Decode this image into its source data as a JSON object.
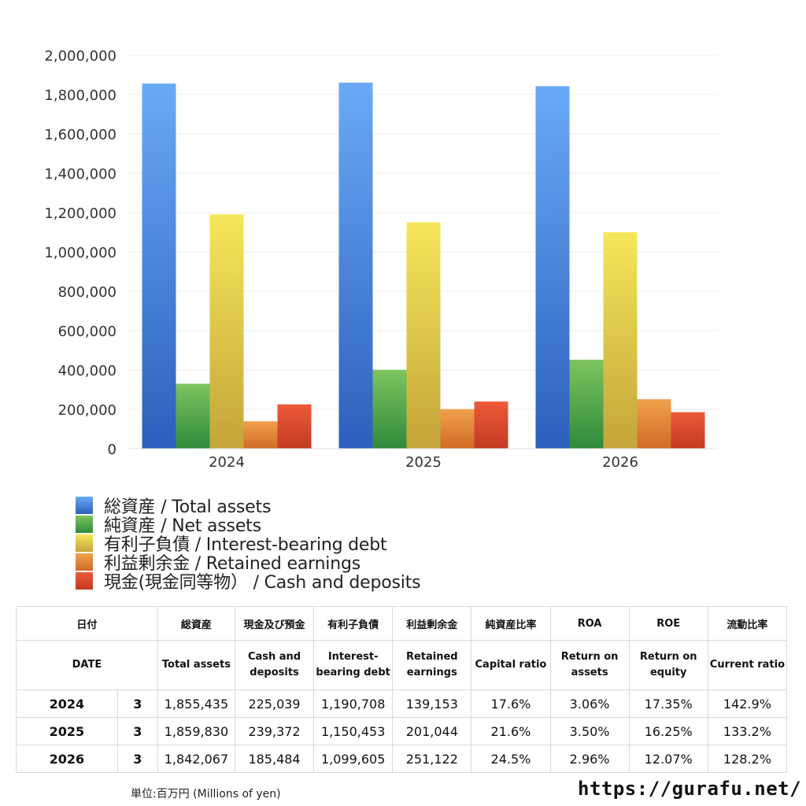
{
  "chart_data": {
    "type": "bar",
    "categories": [
      "2024",
      "2025",
      "2026"
    ],
    "series": [
      {
        "name": "総資産 / Total assets",
        "values": [
          1855435,
          1859830,
          1842067
        ],
        "color_top": "#6aaaf5",
        "color_bottom": "#2c5fbd"
      },
      {
        "name": "純資産 / Net assets",
        "values": [
          330000,
          401000,
          452000
        ],
        "color_top": "#7ec460",
        "color_bottom": "#2e8a3a"
      },
      {
        "name": "有利子負債 / Interest-bearing debt",
        "values": [
          1190708,
          1150453,
          1099605
        ],
        "color_top": "#f6e65a",
        "color_bottom": "#c4a53a"
      },
      {
        "name": "利益剰余金 / Retained earnings",
        "values": [
          139153,
          201044,
          251122
        ],
        "color_top": "#f0a24e",
        "color_bottom": "#d06a26"
      },
      {
        "name": "現金(現金同等物)  /  Cash and deposits",
        "values": [
          225039,
          239372,
          185484
        ],
        "color_top": "#ee5a3a",
        "color_bottom": "#c23a22"
      }
    ],
    "ylim": [
      0,
      2000000
    ],
    "yticks": [
      0,
      200000,
      400000,
      600000,
      800000,
      1000000,
      1200000,
      1400000,
      1600000,
      1800000,
      2000000
    ],
    "ytick_labels": [
      "0",
      "200,000",
      "400,000",
      "600,000",
      "800,000",
      "1,000,000",
      "1,200,000",
      "1,400,000",
      "1,600,000",
      "1,800,000",
      "2,000,000"
    ],
    "grid": true,
    "legend_position": "bottom-left"
  },
  "legend": [
    {
      "label": "総資産 / Total assets",
      "color": "#4a88e0"
    },
    {
      "label": "純資産 / Net assets",
      "color": "#4fa84a"
    },
    {
      "label": "有利子負債 / Interest-bearing debt",
      "color": "#ead048"
    },
    {
      "label": "利益剰余金 / Retained earnings",
      "color": "#e58a3c"
    },
    {
      "label": "現金(現金同等物）  /  Cash and deposits",
      "color": "#dd4a30"
    }
  ],
  "table": {
    "header_jp": [
      "日付",
      "総資産",
      "現金及び預金",
      "有利子負債",
      "利益剰余金",
      "純資産比率",
      "ROA",
      "ROE",
      "流動比率"
    ],
    "header_en": [
      "DATE",
      "Total assets",
      "Cash and deposits",
      "Interest-bearing debt",
      "Retained earnings",
      "Capital ratio",
      "Return on assets",
      "Return on equity",
      "Current ratio"
    ],
    "rows": [
      {
        "year": "2024",
        "month": "3",
        "total_assets": "1,855,435",
        "cash": "225,039",
        "debt": "1,190,708",
        "retained": "139,153",
        "capital_ratio": "17.6%",
        "roa": "3.06%",
        "roe": "17.35%",
        "current_ratio": "142.9%"
      },
      {
        "year": "2025",
        "month": "3",
        "total_assets": "1,859,830",
        "cash": "239,372",
        "debt": "1,150,453",
        "retained": "201,044",
        "capital_ratio": "21.6%",
        "roa": "3.50%",
        "roe": "16.25%",
        "current_ratio": "133.2%"
      },
      {
        "year": "2026",
        "month": "3",
        "total_assets": "1,842,067",
        "cash": "185,484",
        "debt": "1,099,605",
        "retained": "251,122",
        "capital_ratio": "24.5%",
        "roa": "2.96%",
        "roe": "12.07%",
        "current_ratio": "128.2%"
      }
    ]
  },
  "footer": {
    "unit_note": "単位:百万円 (Millions of yen)",
    "url": "https://gurafu.net/"
  }
}
